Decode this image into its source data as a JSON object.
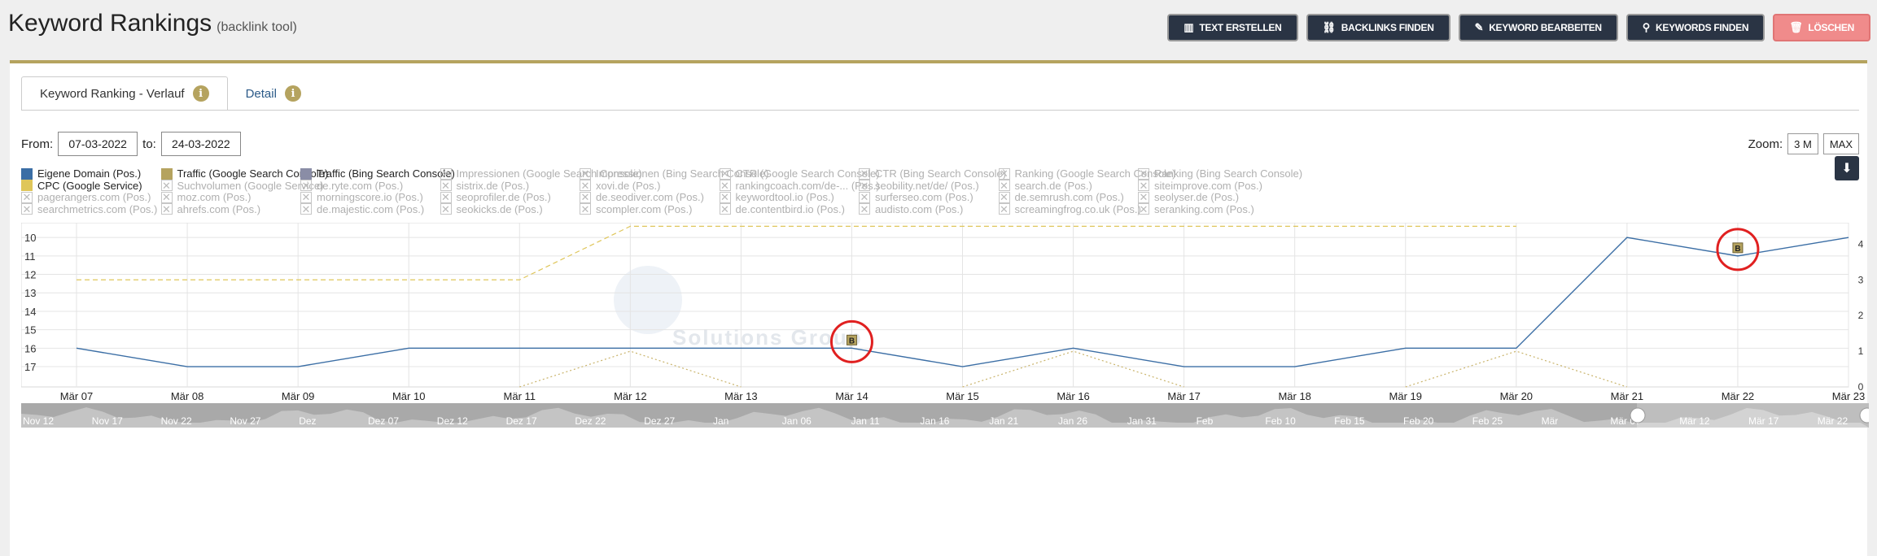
{
  "header": {
    "title": "Keyword Rankings",
    "subtitle": "(backlink tool)"
  },
  "toolbar": [
    {
      "label": "TEXT ERSTELLEN",
      "icon": "book-icon",
      "glyph": "▥"
    },
    {
      "label": "BACKLINKS FINDEN",
      "icon": "link-icon",
      "glyph": "⛓"
    },
    {
      "label": "KEYWORD BEARBEITEN",
      "icon": "edit-icon",
      "glyph": "✎"
    },
    {
      "label": "KEYWORDS FINDEN",
      "icon": "search-icon",
      "glyph": "⚲"
    },
    {
      "label": "LÖSCHEN",
      "icon": "trash-icon",
      "glyph": "🗑"
    }
  ],
  "tabs": {
    "active": "Keyword Ranking - Verlauf",
    "detail": "Detail",
    "info": "i"
  },
  "filters": {
    "from_label": "From:",
    "from": "07-03-2022",
    "to_label": "to:",
    "to": "24-03-2022"
  },
  "zoom": {
    "label": "Zoom:",
    "options": [
      "3 M",
      "MAX"
    ]
  },
  "legend": [
    {
      "label": "Eigene Domain (Pos.)",
      "active": true,
      "color": "#3b6ea5"
    },
    {
      "label": "Traffic (Google Search Console)",
      "active": true,
      "color": "#b5a35f"
    },
    {
      "label": "Traffic (Bing Search Console)",
      "active": true,
      "color": "#8a8da6"
    },
    {
      "label": "Impressionen (Google Search Console)",
      "active": false
    },
    {
      "label": "Impressionen (Bing Search Console)",
      "active": false
    },
    {
      "label": "CTR (Google Search Console)",
      "active": false
    },
    {
      "label": "CTR (Bing Search Console)",
      "active": false
    },
    {
      "label": "Ranking (Google Search Console)",
      "active": false
    },
    {
      "label": "Ranking (Bing Search Console)",
      "active": false
    },
    {
      "label": "CPC (Google Service)",
      "active": true,
      "color": "#dfc65a"
    },
    {
      "label": "Suchvolumen (Google Service)",
      "active": false
    },
    {
      "label": "de.ryte.com (Pos.)",
      "active": false
    },
    {
      "label": "sistrix.de (Pos.)",
      "active": false
    },
    {
      "label": "xovi.de (Pos.)",
      "active": false
    },
    {
      "label": "rankingcoach.com/de-... (Pos.)",
      "active": false
    },
    {
      "label": "seobility.net/de/ (Pos.)",
      "active": false
    },
    {
      "label": "search.de (Pos.)",
      "active": false
    },
    {
      "label": "siteimprove.com (Pos.)",
      "active": false
    },
    {
      "label": "pagerangers.com (Pos.)",
      "active": false
    },
    {
      "label": "moz.com (Pos.)",
      "active": false
    },
    {
      "label": "morningscore.io (Pos.)",
      "active": false
    },
    {
      "label": "seoprofiler.de (Pos.)",
      "active": false
    },
    {
      "label": "de.seodiver.com (Pos.)",
      "active": false
    },
    {
      "label": "keywordtool.io (Pos.)",
      "active": false
    },
    {
      "label": "surferseo.com (Pos.)",
      "active": false
    },
    {
      "label": "de.semrush.com (Pos.)",
      "active": false
    },
    {
      "label": "seolyser.de (Pos.)",
      "active": false
    },
    {
      "label": "searchmetrics.com (Pos.)",
      "active": false
    },
    {
      "label": "ahrefs.com (Pos.)",
      "active": false
    },
    {
      "label": "de.majestic.com (Pos.)",
      "active": false
    },
    {
      "label": "seokicks.de (Pos.)",
      "active": false
    },
    {
      "label": "scompler.com (Pos.)",
      "active": false
    },
    {
      "label": "de.contentbird.io (Pos.)",
      "active": false
    },
    {
      "label": "audisto.com (Pos.)",
      "active": false
    },
    {
      "label": "screamingfrog.co.uk (Pos.)",
      "active": false
    },
    {
      "label": "seranking.com (Pos.)",
      "active": false
    }
  ],
  "chart_data": {
    "type": "line",
    "categories": [
      "Mär 07",
      "Mär 08",
      "Mär 09",
      "Mär 10",
      "Mär 11",
      "Mär 12",
      "Mär 13",
      "Mär 14",
      "Mär 15",
      "Mär 16",
      "Mär 17",
      "Mär 18",
      "Mär 19",
      "Mär 20",
      "Mär 21",
      "Mär 22",
      "Mär 23"
    ],
    "y_left": {
      "ticks": [
        10,
        11,
        12,
        13,
        14,
        15,
        16,
        17
      ],
      "range": [
        9.2,
        18.1
      ],
      "reversed": true
    },
    "y_right": {
      "ticks": [
        0,
        1,
        2,
        3,
        4
      ],
      "range": [
        0,
        4.6
      ]
    },
    "series": [
      {
        "name": "Eigene Domain (Pos.)",
        "axis": "left",
        "style": "solid",
        "color": "#3b6ea5",
        "values": [
          16,
          17,
          17,
          16,
          16,
          16,
          16,
          16,
          17,
          16,
          17,
          17,
          16,
          16,
          10,
          11,
          10
        ]
      },
      {
        "name": "CPC (Google Service)",
        "axis": "right",
        "style": "dashed",
        "color": "#dfc65a",
        "values": [
          3.0,
          3.0,
          3.0,
          3.0,
          3.0,
          4.5,
          4.5,
          4.5,
          4.5,
          4.5,
          4.5,
          4.5,
          4.5,
          4.5,
          null,
          null,
          null
        ]
      },
      {
        "name": "Traffic (Google Search Console)",
        "axis": "right",
        "style": "dotted",
        "color": "#c9b36a",
        "values": [
          null,
          null,
          null,
          null,
          0,
          1,
          0,
          null,
          0,
          1,
          0,
          null,
          0,
          1,
          0,
          null,
          null
        ]
      }
    ],
    "annotations": [
      {
        "label": "B",
        "x": "Mär 14",
        "y": 16
      },
      {
        "label": "B",
        "x": "Mär 22",
        "y": 11
      }
    ],
    "watermark": "Solutions Group",
    "grid": true
  },
  "navigator": {
    "labels": [
      "Nov 12",
      "Nov 17",
      "Nov 22",
      "Nov 27",
      "Dez",
      "Dez 07",
      "Dez 12",
      "Dez 17",
      "Dez 22",
      "Dez 27",
      "Jan",
      "Jan 06",
      "Jan 11",
      "Jan 16",
      "Jan 21",
      "Jan 26",
      "Jan 31",
      "Feb",
      "Feb 10",
      "Feb 15",
      "Feb 20",
      "Feb 25",
      "Mär",
      "Mär 07",
      "Mär 12",
      "Mär 17",
      "Mär 22"
    ]
  }
}
